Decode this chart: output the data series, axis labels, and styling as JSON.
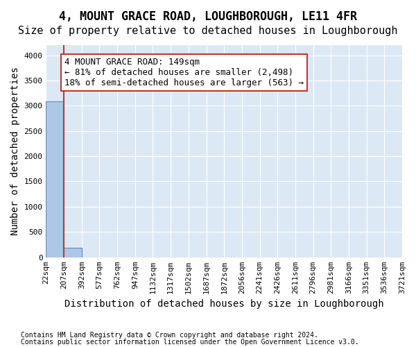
{
  "title": "4, MOUNT GRACE ROAD, LOUGHBOROUGH, LE11 4FR",
  "subtitle": "Size of property relative to detached houses in Loughborough",
  "xlabel": "Distribution of detached houses by size in Loughborough",
  "ylabel": "Number of detached properties",
  "footnote1": "Contains HM Land Registry data © Crown copyright and database right 2024.",
  "footnote2": "Contains public sector information licensed under the Open Government Licence v3.0.",
  "bin_labels": [
    "22sqm",
    "207sqm",
    "392sqm",
    "577sqm",
    "762sqm",
    "947sqm",
    "1132sqm",
    "1317sqm",
    "1502sqm",
    "1687sqm",
    "1872sqm",
    "2056sqm",
    "2241sqm",
    "2426sqm",
    "2611sqm",
    "2796sqm",
    "2981sqm",
    "3166sqm",
    "3351sqm",
    "3536sqm",
    "3721sqm"
  ],
  "bar_values": [
    3083,
    185,
    0,
    0,
    0,
    0,
    0,
    0,
    0,
    0,
    0,
    0,
    0,
    0,
    0,
    0,
    0,
    0,
    0,
    0
  ],
  "bar_color": "#aec6e8",
  "bar_edge_color": "#5a8fc0",
  "vline_color": "#c0392b",
  "property_label": "4 MOUNT GRACE ROAD: 149sqm",
  "annotation_line1": "← 81% of detached houses are smaller (2,498)",
  "annotation_line2": "18% of semi-detached houses are larger (563) →",
  "ylim": [
    0,
    4200
  ],
  "yticks": [
    0,
    500,
    1000,
    1500,
    2000,
    2500,
    3000,
    3500,
    4000
  ],
  "plot_bg_color": "#dce9f5",
  "grid_color": "white",
  "title_fontsize": 12,
  "subtitle_fontsize": 11,
  "axis_label_fontsize": 10,
  "tick_fontsize": 8,
  "annotation_fontsize": 9,
  "footnote_fontsize": 7
}
